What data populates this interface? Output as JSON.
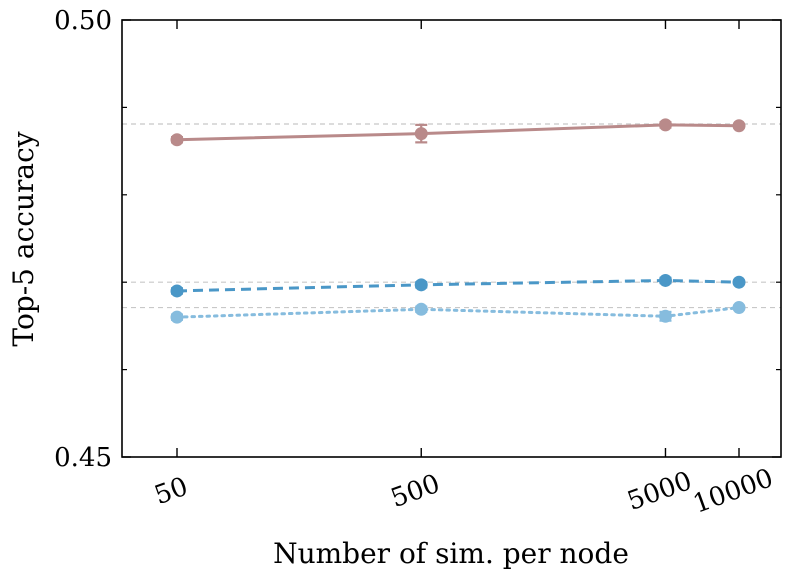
{
  "chart_data": {
    "type": "line",
    "xlabel": "Number of sim. per node",
    "ylabel": "Top-5 accuracy",
    "x": [
      50,
      500,
      5000,
      10000
    ],
    "x_tick_labels": [
      "50",
      "500",
      "5000",
      "10000"
    ],
    "x_scale": "log",
    "ylim": [
      0.45,
      0.5
    ],
    "y_tick_labels": [
      "0.45",
      "0.50"
    ],
    "y_minor_ticks": [
      0.46,
      0.47,
      0.48,
      0.49
    ],
    "grid": false,
    "series": [
      {
        "values": [
          0.4863,
          0.487,
          0.488,
          0.4879
        ],
        "error": [
          0.0003,
          0.001,
          0.0003,
          0.0002
        ],
        "color": "#b98a8a",
        "linestyle": "solid",
        "marker": "circle"
      },
      {
        "values": [
          0.469,
          0.4697,
          0.4702,
          0.47
        ],
        "error": [
          0.0003,
          0.0003,
          0.0003,
          0.0002
        ],
        "color": "#4a97c7",
        "linestyle": "dashed",
        "marker": "circle"
      },
      {
        "values": [
          0.466,
          0.4669,
          0.4661,
          0.4671
        ],
        "error": [
          0.0003,
          0.0003,
          0.0005,
          0.0002
        ],
        "color": "#86bcde",
        "linestyle": "dotted",
        "marker": "circle"
      }
    ],
    "reference_lines": [
      {
        "value": 0.4881,
        "color": "#c8c8c8",
        "linestyle": "dashed"
      },
      {
        "value": 0.47,
        "color": "#c8c8c8",
        "linestyle": "dashed"
      },
      {
        "value": 0.4671,
        "color": "#c8c8c8",
        "linestyle": "dashed"
      }
    ]
  }
}
